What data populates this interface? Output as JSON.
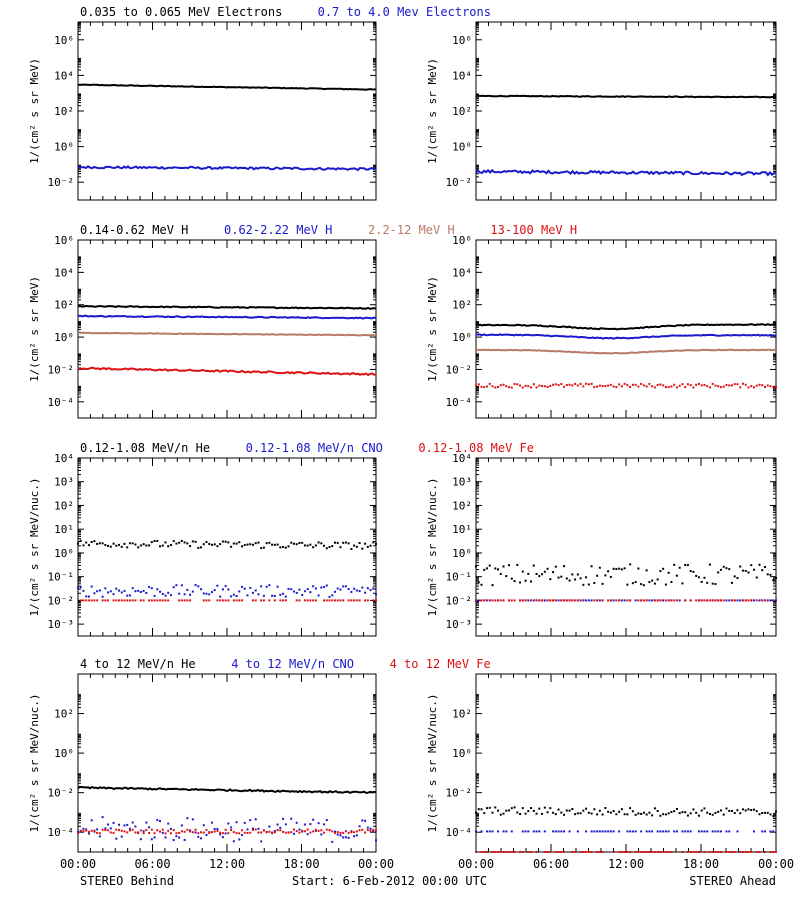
{
  "colors": {
    "black": "#000000",
    "blue": "#1a1acc",
    "tan": "#b87a66",
    "red": "#dd1111"
  },
  "rows": [
    {
      "legend": [
        {
          "text": "0.035 to 0.065 MeV Electrons",
          "color": "#000000"
        },
        {
          "text": "0.7 to 4.0 Mev Electrons",
          "color": "#1a1acc"
        }
      ],
      "ylabel": "1/(cm² s sr MeV)",
      "ymin_exp": -3,
      "ymax_exp": 7,
      "tick_exps": [
        -2,
        0,
        2,
        4,
        6
      ],
      "tick_labels": [
        "10⁻²",
        "10⁰",
        "10²",
        "10⁴",
        "10⁶"
      ]
    },
    {
      "legend": [
        {
          "text": "0.14-0.62 MeV H",
          "color": "#000000"
        },
        {
          "text": "0.62-2.22 MeV H",
          "color": "#1a1acc"
        },
        {
          "text": "2.2-12 MeV H",
          "color": "#b87a66"
        },
        {
          "text": "13-100 MeV H",
          "color": "#dd1111"
        }
      ],
      "ylabel": "1/(cm² s sr MeV)",
      "ymin_exp": -5,
      "ymax_exp": 6,
      "tick_exps": [
        -4,
        -2,
        0,
        2,
        4,
        6
      ],
      "tick_labels": [
        "10⁻⁴",
        "10⁻²",
        "10⁰",
        "10²",
        "10⁴",
        "10⁶"
      ]
    },
    {
      "legend": [
        {
          "text": "0.12-1.08 MeV/n He",
          "color": "#000000"
        },
        {
          "text": "0.12-1.08 MeV/n CNO",
          "color": "#1a1acc"
        },
        {
          "text": "0.12-1.08 MeV Fe",
          "color": "#dd1111"
        }
      ],
      "ylabel": "1/(cm² s sr MeV/nuc.)",
      "ymin_exp": -3.5,
      "ymax_exp": 4,
      "tick_exps": [
        -3,
        -2,
        -1,
        0,
        1,
        2,
        3,
        4
      ],
      "tick_labels": [
        "10⁻³",
        "10⁻²",
        "10⁻¹",
        "10⁰",
        "10¹",
        "10²",
        "10³",
        "10⁴"
      ]
    },
    {
      "legend": [
        {
          "text": "4 to 12 MeV/n He",
          "color": "#000000"
        },
        {
          "text": "4 to 12 MeV/n CNO",
          "color": "#1a1acc"
        },
        {
          "text": "4 to 12 MeV Fe",
          "color": "#dd1111"
        }
      ],
      "ylabel": "1/(cm² s sr MeV/nuc.)",
      "ymin_exp": -5,
      "ymax_exp": 4,
      "tick_exps": [
        -4,
        -2,
        0,
        2
      ],
      "tick_labels": [
        "10⁻⁴",
        "10⁻²",
        "10⁰",
        "10²"
      ]
    }
  ],
  "footer": {
    "left": "STEREO Behind",
    "center": "Start:  6-Feb-2012 00:00 UTC",
    "right": "STEREO Ahead"
  },
  "chart_data": {
    "type": "scatter",
    "x_ticks": [
      "00:00",
      "06:00",
      "12:00",
      "18:00",
      "00:00"
    ],
    "x_range_hours": [
      0,
      24
    ],
    "y_scale": "log",
    "panels": [
      {
        "row": 0,
        "side": "Behind",
        "series": [
          {
            "color": "#000000",
            "style": "line",
            "start": 3000.0,
            "end": 1600.0,
            "scatter": 0.02
          },
          {
            "color": "#1a1acc",
            "style": "line",
            "start": 0.07,
            "end": 0.055,
            "scatter": 0.06
          }
        ]
      },
      {
        "row": 0,
        "side": "Ahead",
        "series": [
          {
            "color": "#000000",
            "style": "line",
            "start": 700.0,
            "end": 600.0,
            "scatter": 0.02
          },
          {
            "color": "#1a1acc",
            "style": "line",
            "start": 0.04,
            "end": 0.03,
            "scatter": 0.08
          }
        ]
      },
      {
        "row": 1,
        "side": "Behind",
        "series": [
          {
            "color": "#000000",
            "style": "line",
            "start": 80,
            "end": 60,
            "scatter": 0.03
          },
          {
            "color": "#1a1acc",
            "style": "line",
            "start": 20,
            "end": 15,
            "scatter": 0.03
          },
          {
            "color": "#b87a66",
            "style": "line",
            "start": 1.8,
            "end": 1.3,
            "scatter": 0.02
          },
          {
            "color": "#dd1111",
            "style": "line",
            "start": 0.012,
            "end": 0.005,
            "scatter": 0.05
          }
        ]
      },
      {
        "row": 1,
        "side": "Ahead",
        "series": [
          {
            "color": "#000000",
            "style": "line",
            "start": 5.5,
            "end": 6,
            "dip": 0.25,
            "scatter": 0.03
          },
          {
            "color": "#1a1acc",
            "style": "line",
            "start": 1.4,
            "end": 1.3,
            "dip": 0.2,
            "scatter": 0.03
          },
          {
            "color": "#b87a66",
            "style": "line",
            "start": 0.16,
            "end": 0.16,
            "dip": 0.2,
            "scatter": 0.02
          },
          {
            "color": "#dd1111",
            "style": "dots",
            "start": 0.001,
            "end": 0.001,
            "scatter": 0.12
          }
        ]
      },
      {
        "row": 2,
        "side": "Behind",
        "series": [
          {
            "color": "#000000",
            "style": "dots",
            "start": 2.5,
            "end": 2.0,
            "scatter": 0.15
          },
          {
            "color": "#1a1acc",
            "style": "dots",
            "start": 0.025,
            "end": 0.025,
            "scatter": 0.25
          },
          {
            "color": "#dd1111",
            "style": "dots",
            "start": 0.01,
            "end": 0.01,
            "scatter": 0.0
          }
        ]
      },
      {
        "row": 2,
        "side": "Ahead",
        "series": [
          {
            "color": "#000000",
            "style": "dots",
            "start": 0.12,
            "end": 0.12,
            "scatter": 0.45
          },
          {
            "color": "#1a1acc",
            "style": "dots",
            "start": 0.01,
            "end": 0.01,
            "scatter": 0.0
          },
          {
            "color": "#dd1111",
            "style": "dots",
            "start": 0.01,
            "end": 0.01,
            "scatter": 0.0
          }
        ]
      },
      {
        "row": 3,
        "side": "Behind",
        "series": [
          {
            "color": "#000000",
            "style": "line",
            "start": 0.018,
            "end": 0.01,
            "scatter": 0.04
          },
          {
            "color": "#1a1acc",
            "style": "dots",
            "start": 0.00015,
            "end": 0.00012,
            "scatter": 0.6
          },
          {
            "color": "#dd1111",
            "style": "dots",
            "start": 0.00011,
            "end": 0.00011,
            "scatter": 0.1
          }
        ]
      },
      {
        "row": 3,
        "side": "Ahead",
        "series": [
          {
            "color": "#000000",
            "style": "dots",
            "start": 0.0012,
            "end": 0.001,
            "scatter": 0.2
          },
          {
            "color": "#1a1acc",
            "style": "dots",
            "start": 0.00011,
            "end": 0.00011,
            "scatter": 0.0
          },
          {
            "color": "#dd1111",
            "style": "dots",
            "start": 1e-05,
            "end": 1e-05,
            "scatter": 0.0
          }
        ]
      }
    ]
  }
}
